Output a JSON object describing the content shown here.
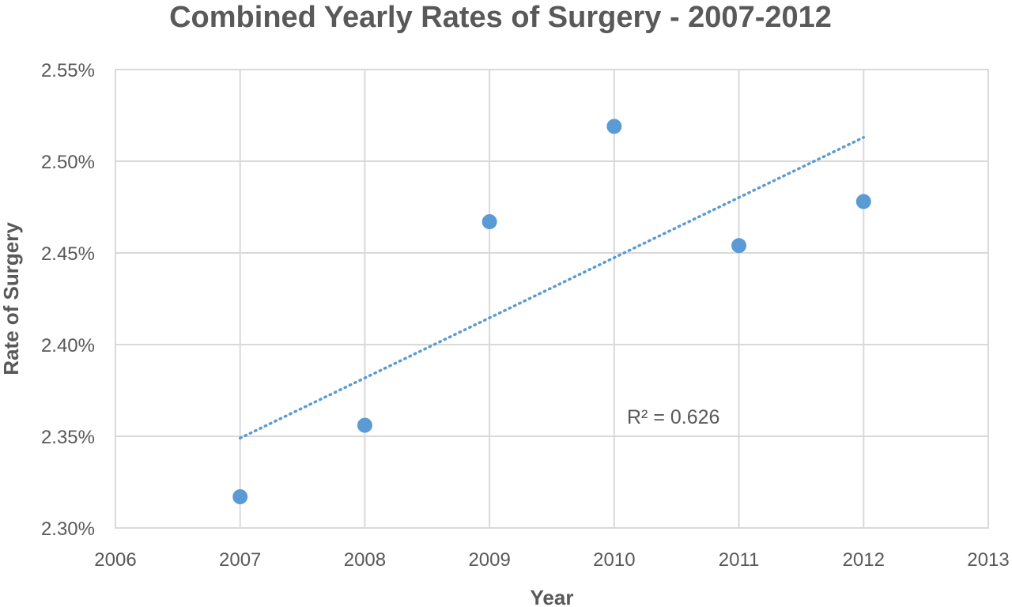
{
  "chart_data": {
    "type": "scatter",
    "title": "Combined Yearly Rates of Surgery - 2007-2012",
    "xlabel": "Year",
    "ylabel": "Rate of Surgery",
    "xlim": [
      2006,
      2013
    ],
    "ylim": [
      0.023,
      0.0255
    ],
    "grid": true,
    "x_ticks": [
      "2006",
      "2007",
      "2008",
      "2009",
      "2010",
      "2011",
      "2012",
      "2013"
    ],
    "y_ticks": [
      "2.30%",
      "2.35%",
      "2.40%",
      "2.45%",
      "2.50%",
      "2.55%"
    ],
    "series": [
      {
        "x": [
          2007,
          2008,
          2009,
          2010,
          2011,
          2012
        ],
        "y": [
          0.02317,
          0.02356,
          0.02467,
          0.02519,
          0.02454,
          0.02478
        ]
      }
    ],
    "trendline": {
      "type": "linear",
      "style": "dotted",
      "x": [
        2007,
        2012
      ],
      "y": [
        0.02349,
        0.02513
      ],
      "annotation": "R² = 0.626"
    },
    "colors": {
      "marker": "#5b9bd5",
      "trendline": "#5b9bd5",
      "grid": "#d9d9d9",
      "text": "#595959"
    }
  }
}
